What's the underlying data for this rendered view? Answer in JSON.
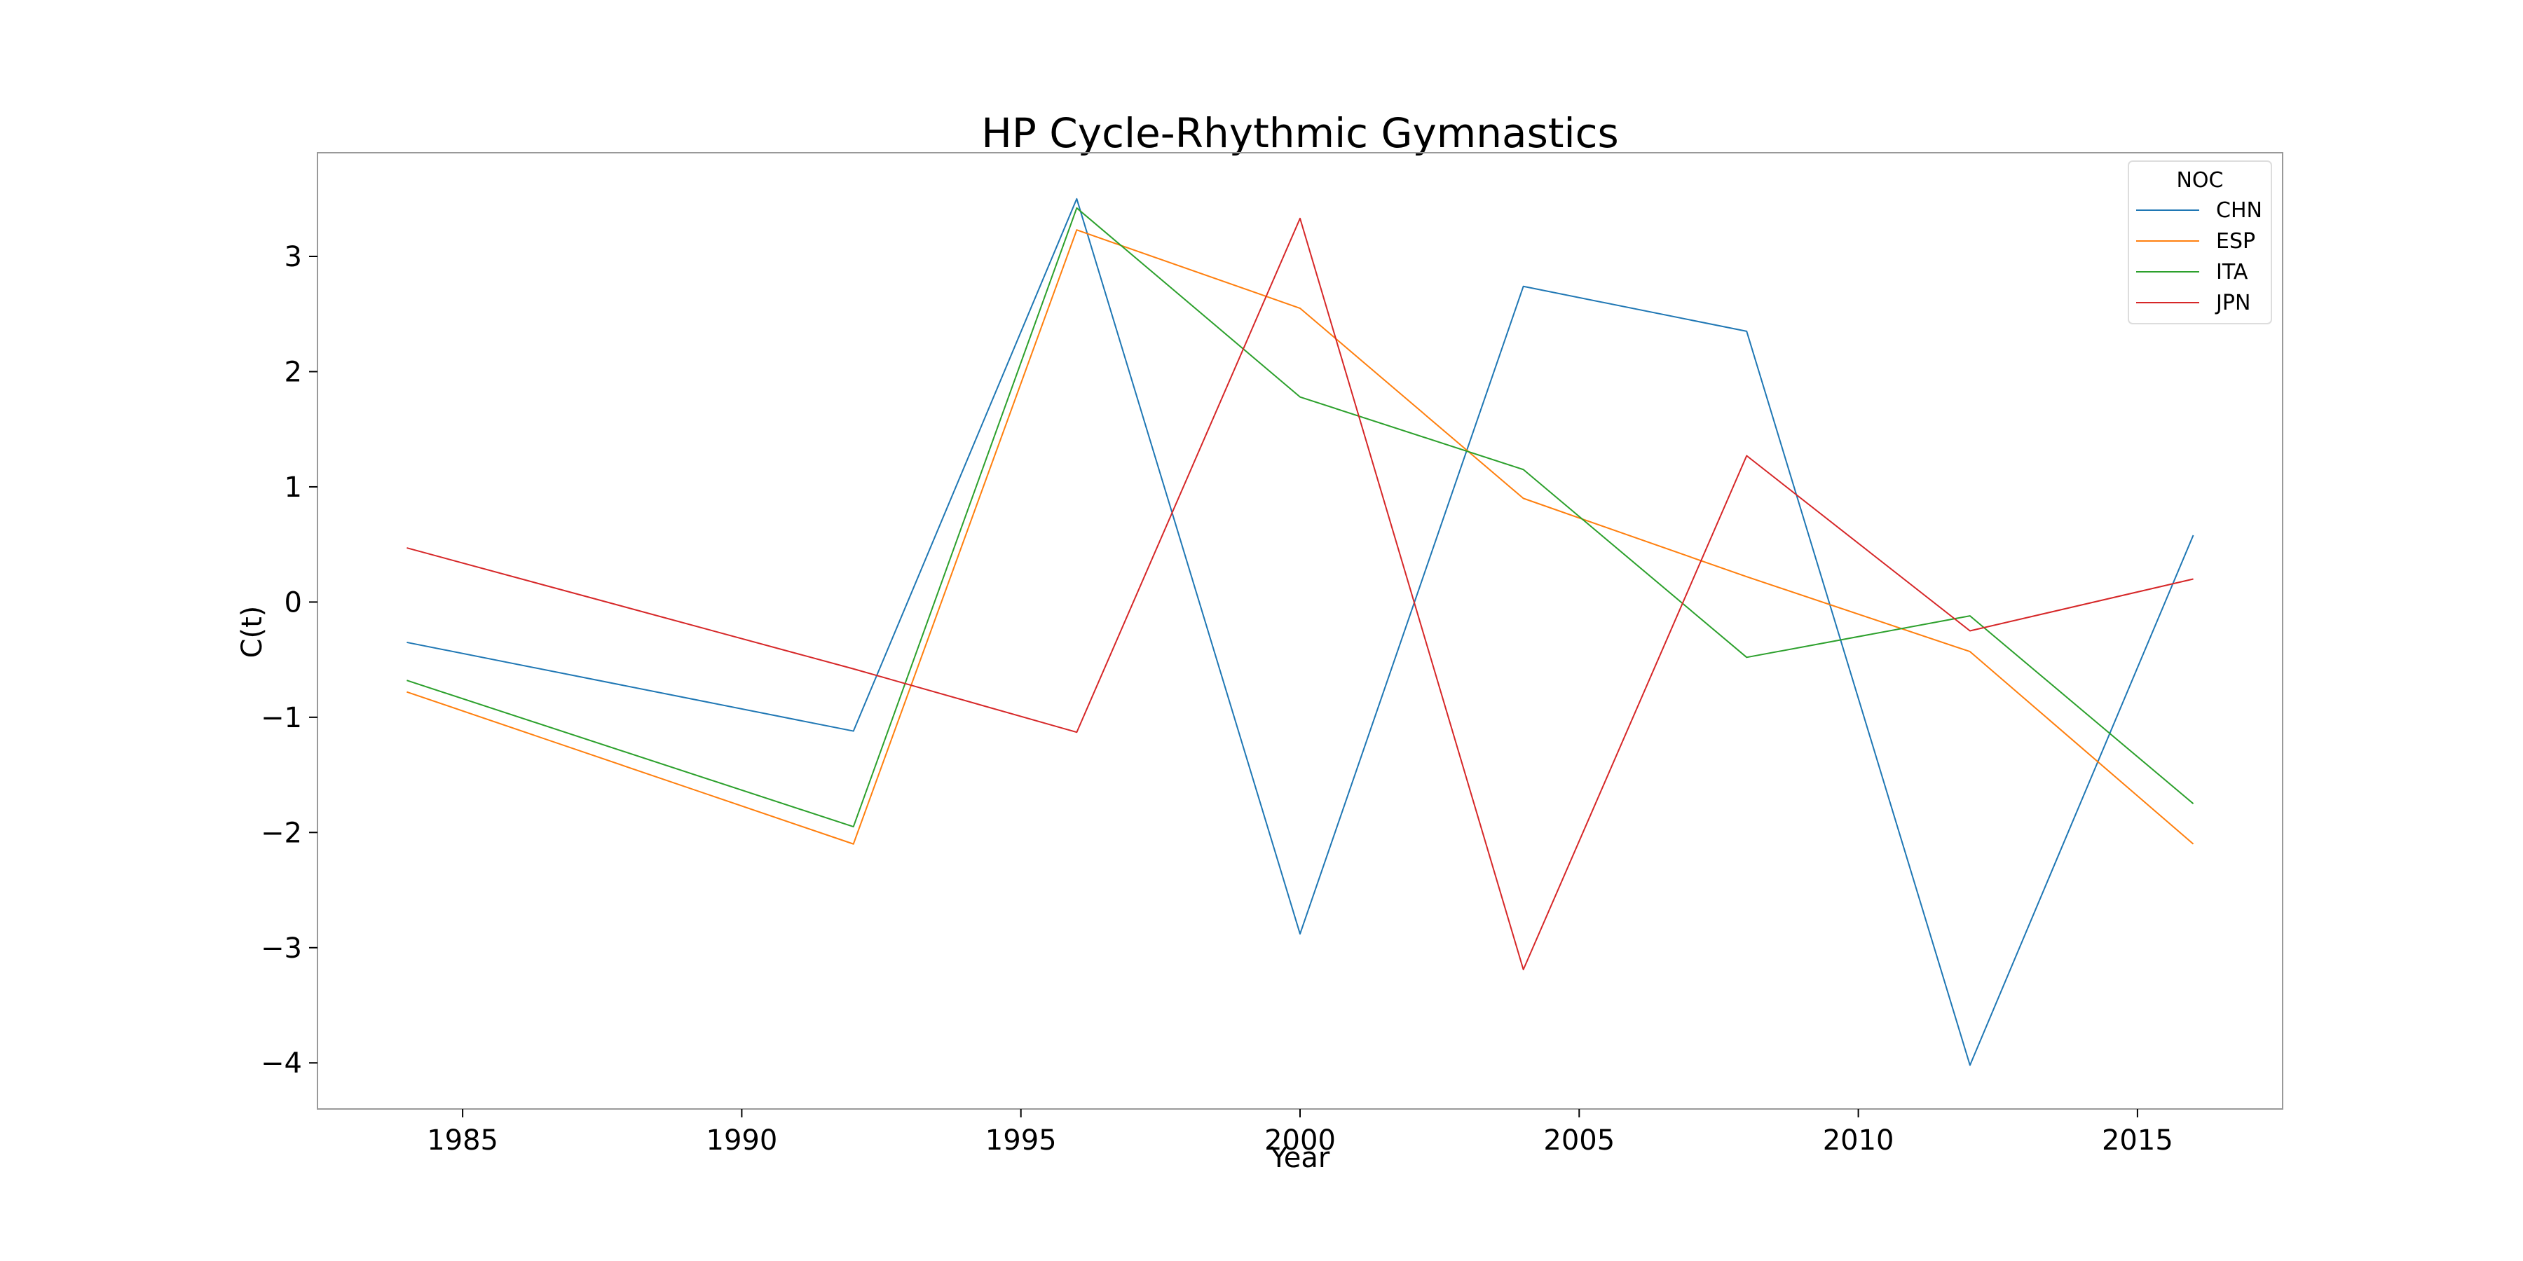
{
  "chart_data": {
    "type": "line",
    "title": "HP Cycle-Rhythmic Gymnastics",
    "xlabel": "Year",
    "ylabel": "C(t)",
    "x": [
      1984,
      1992,
      1996,
      2000,
      2004,
      2008,
      2012,
      2016
    ],
    "xlim": [
      1982.4,
      2017.6
    ],
    "ylim": [
      -4.4,
      3.9
    ],
    "xticks": [
      1985,
      1990,
      1995,
      2000,
      2005,
      2010,
      2015
    ],
    "yticks": [
      -4,
      -3,
      -2,
      -1,
      0,
      1,
      2,
      3
    ],
    "ytick_labels": [
      "−4",
      "−3",
      "−2",
      "−1",
      "0",
      "1",
      "2",
      "3"
    ],
    "grid": false,
    "legend": {
      "title": "NOC",
      "placement": "top-right"
    },
    "series": [
      {
        "name": "CHN",
        "color": "#1f77b4",
        "values": [
          -0.35,
          -1.12,
          3.5,
          -2.88,
          2.74,
          2.35,
          -4.02,
          0.58
        ]
      },
      {
        "name": "ESP",
        "color": "#ff7f0e",
        "values": [
          -0.78,
          -2.1,
          3.23,
          2.55,
          0.9,
          0.22,
          -0.43,
          -2.1
        ]
      },
      {
        "name": "ITA",
        "color": "#2ca02c",
        "values": [
          -0.68,
          -1.95,
          3.42,
          1.78,
          1.15,
          -0.48,
          -0.12,
          -1.75
        ]
      },
      {
        "name": "JPN",
        "color": "#d62728",
        "values": [
          0.47,
          -0.58,
          -1.13,
          3.33,
          -3.19,
          1.27,
          -0.25,
          0.2
        ]
      }
    ]
  }
}
